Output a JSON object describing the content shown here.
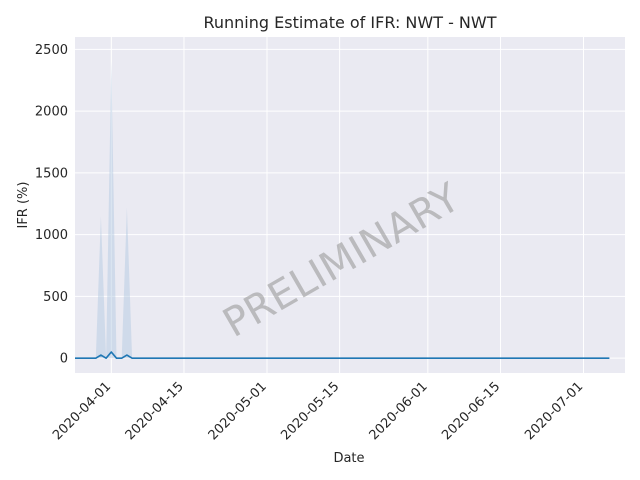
{
  "chart_data": {
    "type": "line",
    "title": "Running Estimate of IFR: NWT - NWT",
    "xlabel": "Date",
    "ylabel": "IFR (%)",
    "ylim": [
      -120,
      2600
    ],
    "xlim": [
      "2020-03-25",
      "2020-07-09"
    ],
    "grid": true,
    "x_ticks": [
      "2020-04-01",
      "2020-04-15",
      "2020-05-01",
      "2020-05-15",
      "2020-06-01",
      "2020-06-15",
      "2020-07-01"
    ],
    "y_ticks": [
      0,
      500,
      1000,
      1500,
      2000,
      2500
    ],
    "watermark": "PRELIMINARY",
    "colors": {
      "line": "#1f77b4",
      "band": "#b0c8e0",
      "background": "#eaeaf2",
      "grid": "#ffffff"
    },
    "series": [
      {
        "x": [
          "2020-03-25",
          "2020-03-29",
          "2020-03-30",
          "2020-03-31",
          "2020-04-01",
          "2020-04-02",
          "2020-04-03",
          "2020-04-04",
          "2020-04-05",
          "2020-04-06",
          "2020-07-06"
        ],
        "values": [
          0,
          0,
          25,
          0,
          50,
          0,
          0,
          25,
          0,
          0,
          0
        ],
        "lower": [
          0,
          0,
          0,
          0,
          0,
          0,
          0,
          0,
          0,
          0,
          0
        ],
        "upper": [
          0,
          0,
          1150,
          0,
          2400,
          0,
          0,
          1220,
          0,
          0,
          0
        ]
      }
    ]
  }
}
